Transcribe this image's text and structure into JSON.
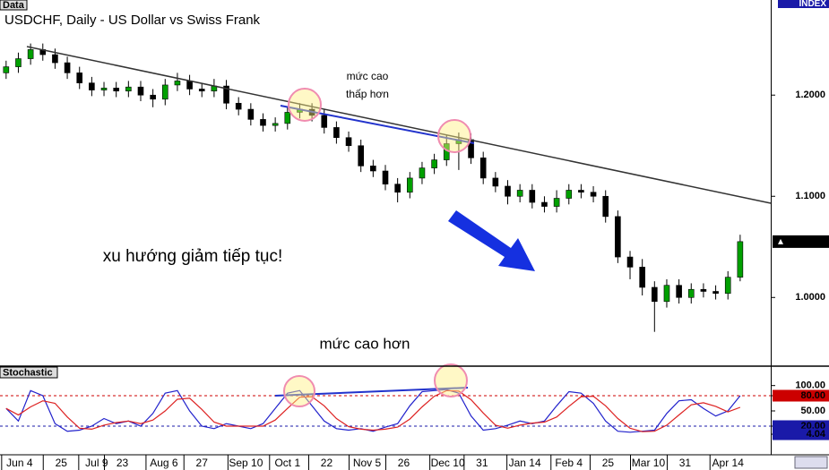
{
  "chart_data": [
    {
      "type": "candlestick",
      "panel_label": "Data",
      "title": "USDCHF, Daily - US Dollar vs Swiss Frank",
      "index_label": "INDEX",
      "annotations": [
        "mức cao",
        "thấp hơn",
        "xu hướng giảm tiếp tục!",
        "mức cao hơn"
      ],
      "up_color": "#00a000",
      "down_color": "#000000",
      "xlim": [
        -0.5,
        62.5
      ],
      "ylim": [
        0.933,
        1.294
      ],
      "yticks": [
        {
          "value": 1.2,
          "label": "1.2000"
        },
        {
          "value": 1.1,
          "label": "1.1000"
        },
        {
          "value": 1.0,
          "label": "1.0000"
        }
      ],
      "opens": [
        1.222,
        1.228,
        1.236,
        1.245,
        1.24,
        1.232,
        1.222,
        1.212,
        1.205,
        1.207,
        1.204,
        1.208,
        1.2,
        1.196,
        1.21,
        1.214,
        1.206,
        1.204,
        1.209,
        1.192,
        1.186,
        1.176,
        1.17,
        1.172,
        1.183,
        1.186,
        1.18,
        1.168,
        1.158,
        1.15,
        1.13,
        1.125,
        1.112,
        1.104,
        1.118,
        1.128,
        1.136,
        1.152,
        1.156,
        1.138,
        1.118,
        1.11,
        1.1,
        1.106,
        1.094,
        1.09,
        1.098,
        1.106,
        1.104,
        1.1,
        1.08,
        1.04,
        1.03,
        1.01,
        0.996,
        1.012,
        1.0,
        1.008,
        1.006,
        1.004,
        1.02
      ],
      "highs": [
        1.234,
        1.242,
        1.251,
        1.251,
        1.246,
        1.238,
        1.228,
        1.218,
        1.213,
        1.213,
        1.214,
        1.214,
        1.206,
        1.216,
        1.222,
        1.22,
        1.212,
        1.216,
        1.215,
        1.198,
        1.192,
        1.182,
        1.178,
        1.189,
        1.192,
        1.192,
        1.186,
        1.174,
        1.164,
        1.156,
        1.136,
        1.131,
        1.118,
        1.124,
        1.134,
        1.142,
        1.16,
        1.163,
        1.162,
        1.144,
        1.124,
        1.116,
        1.112,
        1.112,
        1.1,
        1.106,
        1.112,
        1.112,
        1.11,
        1.106,
        1.086,
        1.046,
        1.038,
        1.016,
        1.018,
        1.018,
        1.014,
        1.014,
        1.012,
        1.026,
        1.062
      ],
      "lows": [
        1.216,
        1.222,
        1.23,
        1.234,
        1.226,
        1.216,
        1.206,
        1.199,
        1.199,
        1.198,
        1.198,
        1.194,
        1.188,
        1.19,
        1.204,
        1.2,
        1.198,
        1.198,
        1.186,
        1.18,
        1.17,
        1.164,
        1.164,
        1.166,
        1.177,
        1.174,
        1.162,
        1.152,
        1.144,
        1.124,
        1.119,
        1.106,
        1.094,
        1.098,
        1.112,
        1.122,
        1.13,
        1.126,
        1.132,
        1.112,
        1.104,
        1.092,
        1.094,
        1.088,
        1.084,
        1.084,
        1.092,
        1.098,
        1.094,
        1.074,
        1.034,
        1.018,
        1.002,
        0.966,
        0.99,
        0.994,
        0.994,
        1.0,
        0.998,
        0.998,
        1.016
      ],
      "closes": [
        1.228,
        1.236,
        1.245,
        1.24,
        1.232,
        1.222,
        1.212,
        1.205,
        1.207,
        1.204,
        1.208,
        1.2,
        1.196,
        1.21,
        1.214,
        1.206,
        1.204,
        1.209,
        1.192,
        1.186,
        1.176,
        1.17,
        1.172,
        1.183,
        1.186,
        1.18,
        1.168,
        1.158,
        1.15,
        1.13,
        1.125,
        1.112,
        1.104,
        1.118,
        1.128,
        1.136,
        1.152,
        1.156,
        1.138,
        1.118,
        1.11,
        1.1,
        1.106,
        1.094,
        1.09,
        1.098,
        1.106,
        1.104,
        1.1,
        1.08,
        1.04,
        1.03,
        1.01,
        0.996,
        1.012,
        1.0,
        1.008,
        1.006,
        1.004,
        1.02,
        1.0552
      ]
    },
    {
      "type": "line",
      "title": "Stochastic",
      "xlim": [
        -0.5,
        62.5
      ],
      "ylim": [
        -36.5,
        136.5
      ],
      "xticks": [
        {
          "value": 1.1,
          "label": "Jun 4"
        },
        {
          "value": 4.5,
          "label": "25"
        },
        {
          "value": 7.4,
          "label": "Jul 9"
        },
        {
          "value": 9.5,
          "label": "23"
        },
        {
          "value": 12.9,
          "label": "Aug 6"
        },
        {
          "value": 16.0,
          "label": "27"
        },
        {
          "value": 19.6,
          "label": "Sep 10"
        },
        {
          "value": 23.0,
          "label": "Oct 1"
        },
        {
          "value": 26.2,
          "label": "22"
        },
        {
          "value": 29.5,
          "label": "Nov 5"
        },
        {
          "value": 32.5,
          "label": "26"
        },
        {
          "value": 36.1,
          "label": "Dec 10"
        },
        {
          "value": 38.9,
          "label": "31"
        },
        {
          "value": 42.4,
          "label": "Jan 14"
        },
        {
          "value": 46.0,
          "label": "Feb 4"
        },
        {
          "value": 49.2,
          "label": "25"
        },
        {
          "value": 52.5,
          "label": "Mar 10"
        },
        {
          "value": 55.5,
          "label": "31"
        },
        {
          "value": 59.0,
          "label": "Apr 14"
        }
      ],
      "yticks": [
        {
          "value": 100,
          "label": "100.00"
        },
        {
          "value": 80,
          "label": "80.00",
          "color": "#cc0000"
        },
        {
          "value": 50,
          "label": "50.00"
        },
        {
          "value": 20,
          "label": "20.00",
          "color": "#1a1aa8"
        },
        {
          "value": 4.04,
          "label": "4.04",
          "color": "#1a1aa8"
        }
      ],
      "levels": [
        {
          "value": 80,
          "color": "#cc0000"
        },
        {
          "value": 20,
          "color": "#1a1aa8"
        }
      ],
      "series": [
        {
          "color": "#2222cc",
          "values": [
            55,
            30,
            90,
            80,
            25,
            10,
            12,
            20,
            35,
            25,
            30,
            20,
            45,
            85,
            90,
            50,
            20,
            15,
            25,
            20,
            15,
            25,
            55,
            85,
            90,
            60,
            30,
            15,
            12,
            15,
            10,
            18,
            25,
            60,
            88,
            90,
            92,
            85,
            40,
            12,
            15,
            22,
            30,
            25,
            30,
            60,
            88,
            85,
            65,
            30,
            10,
            8,
            10,
            12,
            45,
            70,
            72,
            55,
            40,
            50,
            80
          ]
        },
        {
          "color": "#dd2222",
          "values": [
            55,
            42,
            58,
            70,
            65,
            38,
            16,
            14,
            22,
            27,
            30,
            25,
            32,
            50,
            73,
            75,
            53,
            28,
            20,
            20,
            20,
            20,
            32,
            55,
            77,
            78,
            60,
            35,
            19,
            14,
            12,
            14,
            18,
            34,
            58,
            79,
            90,
            89,
            72,
            46,
            22,
            16,
            22,
            26,
            28,
            38,
            59,
            78,
            79,
            60,
            35,
            16,
            9,
            10,
            22,
            42,
            62,
            66,
            59,
            48,
            57
          ]
        }
      ]
    }
  ]
}
